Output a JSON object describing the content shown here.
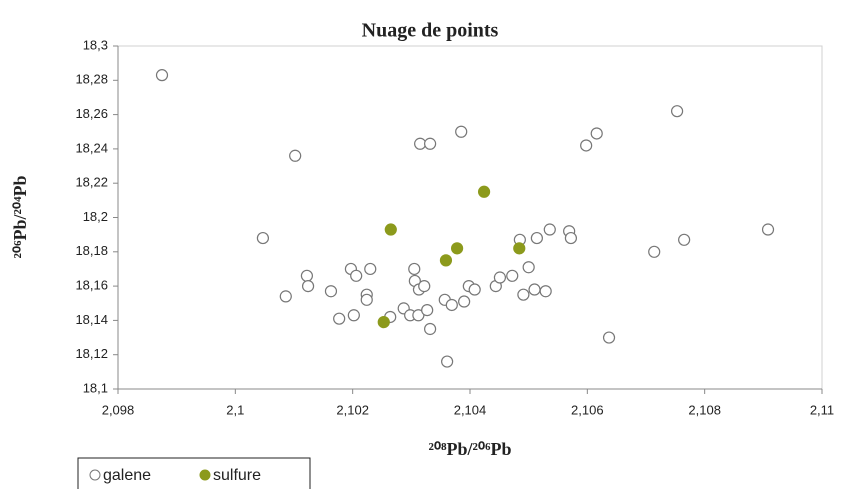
{
  "chart_data": {
    "type": "scatter",
    "title": "Nuage de points",
    "x_label": "²⁰⁸Pb/²⁰⁶Pb",
    "y_label": "²⁰⁶Pb/²⁰⁴Pb",
    "xlim": [
      2.098,
      2.11
    ],
    "ylim": [
      18.1,
      18.3
    ],
    "xticks": [
      {
        "value": 2.098,
        "label": "2,098"
      },
      {
        "value": 2.1,
        "label": "2,1"
      },
      {
        "value": 2.102,
        "label": "2,102"
      },
      {
        "value": 2.104,
        "label": "2,104"
      },
      {
        "value": 2.106,
        "label": "2,106"
      },
      {
        "value": 2.108,
        "label": "2,108"
      },
      {
        "value": 2.11,
        "label": "2,11"
      }
    ],
    "yticks": [
      {
        "value": 18.1,
        "label": "18,1"
      },
      {
        "value": 18.12,
        "label": "18,12"
      },
      {
        "value": 18.14,
        "label": "18,14"
      },
      {
        "value": 18.16,
        "label": "18,16"
      },
      {
        "value": 18.18,
        "label": "18,18"
      },
      {
        "value": 18.2,
        "label": "18,2"
      },
      {
        "value": 18.22,
        "label": "18,22"
      },
      {
        "value": 18.24,
        "label": "18,24"
      },
      {
        "value": 18.26,
        "label": "18,26"
      },
      {
        "value": 18.28,
        "label": "18,28"
      },
      {
        "value": 18.3,
        "label": "18,3"
      }
    ],
    "grid": false,
    "series": [
      {
        "name": "galene",
        "color": "#ffffff",
        "x": [
          2.09875,
          2.10102,
          2.10047,
          2.10086,
          2.10122,
          2.10124,
          2.10163,
          2.10177,
          2.10197,
          2.10206,
          2.10202,
          2.10224,
          2.10224,
          2.1023,
          2.10264,
          2.10287,
          2.10298,
          2.10305,
          2.10306,
          2.10313,
          2.10322,
          2.10312,
          2.10327,
          2.10332,
          2.10315,
          2.10332,
          2.10385,
          2.10357,
          2.10369,
          2.10361,
          2.1039,
          2.10398,
          2.10408,
          2.10444,
          2.10451,
          2.10472,
          2.10485,
          2.10491,
          2.105,
          2.1051,
          2.10529,
          2.10514,
          2.10536,
          2.10569,
          2.10572,
          2.10598,
          2.10616,
          2.10637,
          2.10714,
          2.10753,
          2.10765,
          2.10908
        ],
        "values": [
          18.283,
          18.236,
          18.188,
          18.154,
          18.166,
          18.16,
          18.157,
          18.141,
          18.17,
          18.166,
          18.143,
          18.155,
          18.152,
          18.17,
          18.142,
          18.147,
          18.143,
          18.17,
          18.163,
          18.158,
          18.16,
          18.143,
          18.146,
          18.135,
          18.243,
          18.243,
          18.25,
          18.152,
          18.149,
          18.116,
          18.151,
          18.16,
          18.158,
          18.16,
          18.165,
          18.166,
          18.187,
          18.155,
          18.171,
          18.158,
          18.157,
          18.188,
          18.193,
          18.192,
          18.188,
          18.242,
          18.249,
          18.13,
          18.18,
          18.262,
          18.187,
          18.193
        ]
      },
      {
        "name": "sulfure",
        "color": "#8c9a1c",
        "x": [
          2.10265,
          2.10253,
          2.10359,
          2.10378,
          2.10424,
          2.10484
        ],
        "values": [
          18.193,
          18.139,
          18.175,
          18.182,
          18.215,
          18.182
        ]
      }
    ],
    "legend": "bottom-left"
  }
}
